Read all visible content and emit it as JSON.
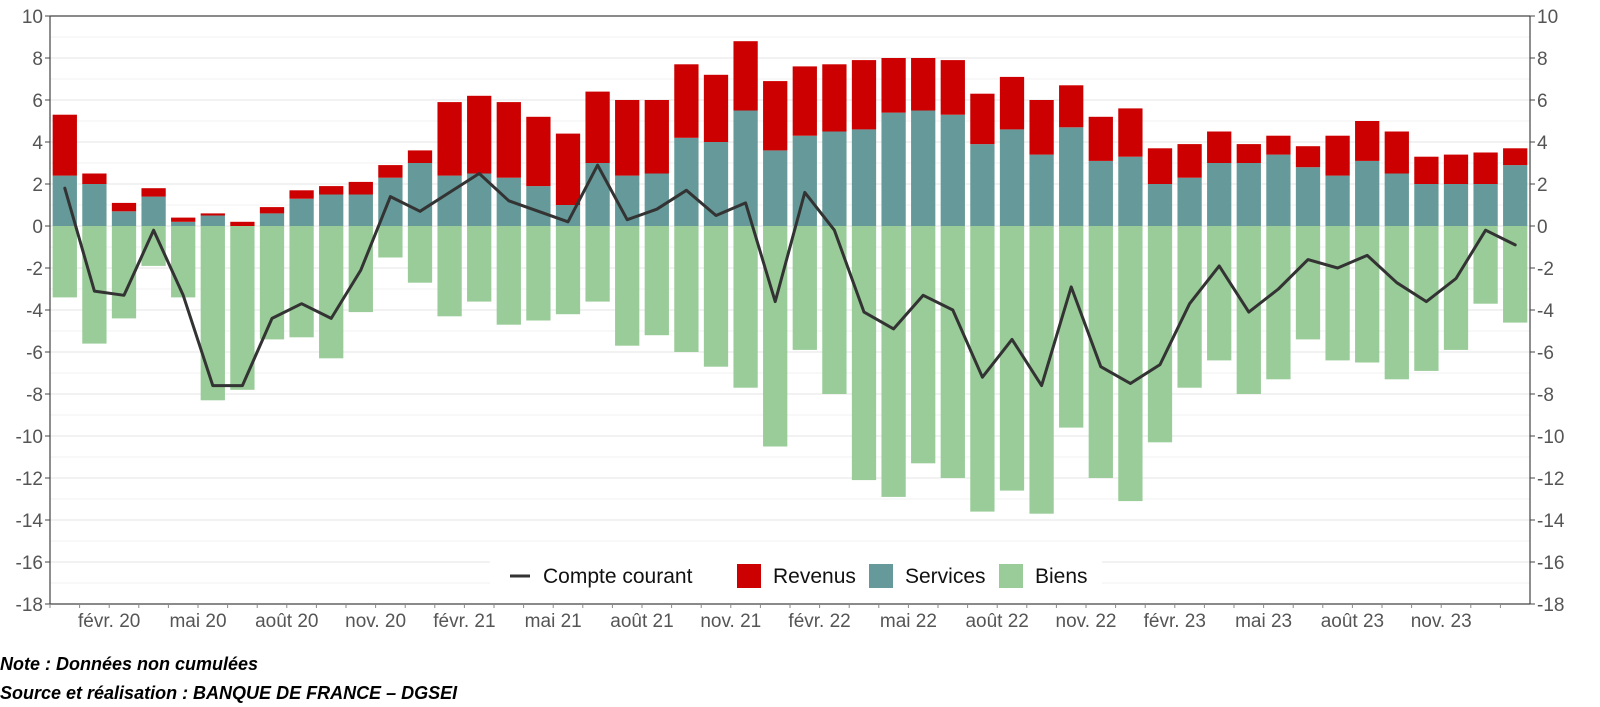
{
  "chart_data": {
    "type": "bar",
    "title": "",
    "xlabel": "",
    "ylabel": "",
    "ylim": [
      -18,
      10
    ],
    "y_ticks": [
      10,
      8,
      6,
      4,
      2,
      0,
      -2,
      -4,
      -6,
      -8,
      -10,
      -12,
      -14,
      -16,
      -18
    ],
    "stacked": true,
    "grid": true,
    "secondary_y_axis": true,
    "legend_position": "bottom-center",
    "categories": [
      "janv. 20",
      "févr. 20",
      "mars 20",
      "avr. 20",
      "mai 20",
      "juin 20",
      "juil. 20",
      "août 20",
      "sept. 20",
      "oct. 20",
      "nov. 20",
      "déc. 20",
      "janv. 21",
      "févr. 21",
      "mars 21",
      "avr. 21",
      "mai 21",
      "juin 21",
      "juil. 21",
      "août 21",
      "sept. 21",
      "oct. 21",
      "nov. 21",
      "déc. 21",
      "janv. 22",
      "févr. 22",
      "mars 22",
      "avr. 22",
      "mai 22",
      "juin 22",
      "juil. 22",
      "août 22",
      "sept. 22",
      "oct. 22",
      "nov. 22",
      "déc. 22",
      "janv. 23",
      "févr. 23",
      "mars 23",
      "avr. 23",
      "mai 23",
      "juin 23",
      "juil. 23",
      "août 23",
      "sept. 23",
      "oct. 23",
      "nov. 23",
      "déc. 23",
      "janv. 24",
      "févr. 24"
    ],
    "x_tick_labels": [
      {
        "index": 2,
        "label": "févr. 20"
      },
      {
        "index": 5,
        "label": "mai 20"
      },
      {
        "index": 8,
        "label": "août 20"
      },
      {
        "index": 11,
        "label": "nov. 20"
      },
      {
        "index": 14,
        "label": "févr. 21"
      },
      {
        "index": 17,
        "label": "mai 21"
      },
      {
        "index": 20,
        "label": "août 21"
      },
      {
        "index": 23,
        "label": "nov. 21"
      },
      {
        "index": 26,
        "label": "févr. 22"
      },
      {
        "index": 29,
        "label": "mai 22"
      },
      {
        "index": 32,
        "label": "août 22"
      },
      {
        "index": 35,
        "label": "nov. 22"
      },
      {
        "index": 38,
        "label": "févr. 23"
      },
      {
        "index": 41,
        "label": "mai 23"
      },
      {
        "index": 44,
        "label": "août 23"
      },
      {
        "index": 47,
        "label": "nov. 23"
      }
    ],
    "series": [
      {
        "name": "Services",
        "kind": "bar",
        "color": "#669999",
        "values": [
          2.4,
          2.0,
          0.7,
          1.4,
          0.2,
          0.5,
          0.0,
          0.6,
          1.3,
          1.5,
          1.5,
          2.3,
          3.0,
          2.4,
          2.5,
          2.3,
          1.9,
          1.0,
          3.0,
          2.4,
          2.5,
          4.2,
          4.0,
          5.5,
          3.6,
          4.3,
          4.5,
          4.6,
          5.4,
          5.5,
          5.3,
          3.9,
          4.6,
          3.4,
          4.7,
          3.1,
          3.3,
          2.0,
          2.3,
          3.0,
          3.0,
          3.4,
          2.8,
          2.4,
          3.1,
          2.5,
          2.0,
          2.0,
          2.0,
          2.9
        ]
      },
      {
        "name": "Revenus",
        "kind": "bar",
        "color": "#CC0000",
        "values": [
          2.9,
          0.5,
          0.4,
          0.4,
          0.2,
          0.1,
          0.2,
          0.3,
          0.4,
          0.4,
          0.6,
          0.6,
          0.6,
          3.5,
          3.7,
          3.6,
          3.3,
          3.4,
          3.4,
          3.6,
          3.5,
          3.5,
          3.2,
          3.3,
          3.3,
          3.3,
          3.2,
          3.3,
          2.6,
          2.5,
          2.6,
          2.4,
          2.5,
          2.6,
          2.0,
          2.1,
          2.3,
          1.7,
          1.6,
          1.5,
          0.9,
          0.9,
          1.0,
          1.9,
          1.9,
          2.0,
          1.3,
          1.4,
          1.5,
          0.8
        ]
      },
      {
        "name": "Biens",
        "kind": "bar",
        "color": "#99CC99",
        "values": [
          -3.4,
          -5.6,
          -4.4,
          -1.9,
          -3.4,
          -8.3,
          -7.8,
          -5.4,
          -5.3,
          -6.3,
          -4.1,
          -1.5,
          -2.7,
          -4.3,
          -3.6,
          -4.7,
          -4.5,
          -4.2,
          -3.6,
          -5.7,
          -5.2,
          -6.0,
          -6.7,
          -7.7,
          -10.5,
          -5.9,
          -8.0,
          -12.1,
          -12.9,
          -11.3,
          -12.0,
          -13.6,
          -12.6,
          -13.7,
          -9.6,
          -12.0,
          -13.1,
          -10.3,
          -7.7,
          -6.4,
          -8.0,
          -7.3,
          -5.4,
          -6.4,
          -6.5,
          -7.3,
          -6.9,
          -5.9,
          -3.7,
          -4.6
        ]
      },
      {
        "name": "Compte courant",
        "kind": "line",
        "color": "#333333",
        "values": [
          1.8,
          -3.1,
          -3.3,
          -0.2,
          -3.3,
          -7.6,
          -7.6,
          -4.4,
          -3.7,
          -4.4,
          -2.1,
          1.4,
          0.7,
          1.6,
          2.5,
          1.2,
          0.7,
          0.2,
          2.9,
          0.3,
          0.8,
          1.7,
          0.5,
          1.1,
          -3.6,
          1.6,
          -0.2,
          -4.1,
          -4.9,
          -3.3,
          -4.0,
          -7.2,
          -5.4,
          -7.6,
          -2.9,
          -6.7,
          -7.5,
          -6.6,
          -3.7,
          -1.9,
          -4.1,
          -3.0,
          -1.6,
          -2.0,
          -1.4,
          -2.7,
          -3.6,
          -2.5,
          -0.2,
          -0.9
        ]
      }
    ],
    "legend": [
      "Compte courant",
      "Revenus",
      "Services",
      "Biens"
    ]
  },
  "notes": {
    "note": "Note : Données non cumulées",
    "source": "Source et réalisation : BANQUE DE FRANCE – DGSEI"
  }
}
